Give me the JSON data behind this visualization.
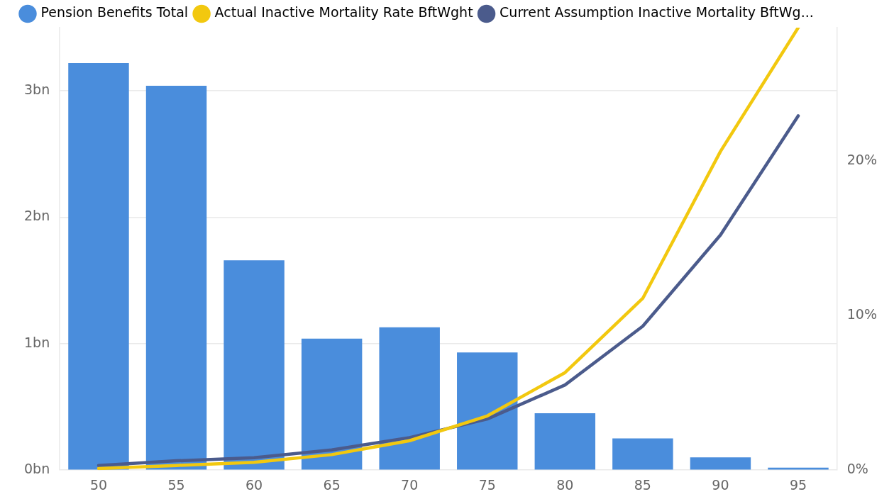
{
  "chart_data": {
    "type": "bar",
    "categories": [
      "50",
      "55",
      "60",
      "65",
      "70",
      "75",
      "80",
      "85",
      "90",
      "95"
    ],
    "series": [
      {
        "name": "Pension Benefits Total",
        "color": "#4a8ddc",
        "values": [
          3.22,
          3.04,
          1.66,
          1.04,
          1.13,
          0.93,
          0.45,
          0.25,
          0.1,
          0.02
        ]
      },
      {
        "name": "Actual Inactive Mortality Rate BftWght",
        "type": "line",
        "axis": "y2",
        "color": "#f2c80f",
        "values": [
          0.1,
          0.3,
          0.5,
          1.0,
          1.9,
          3.5,
          6.3,
          11.1,
          20.6,
          28.6
        ]
      },
      {
        "name": "Current Assumption Inactive Mortality BftWg...",
        "type": "line",
        "axis": "y2",
        "color": "#4b5b8c",
        "values": [
          0.3,
          0.6,
          0.8,
          1.3,
          2.1,
          3.3,
          5.5,
          9.3,
          15.2,
          22.9
        ]
      }
    ],
    "ylim": [
      0,
      3.5
    ],
    "yticks": [
      {
        "value": 0,
        "label": "0bn"
      },
      {
        "value": 1,
        "label": "1bn"
      },
      {
        "value": 2,
        "label": "2bn"
      },
      {
        "value": 3,
        "label": "3bn"
      }
    ],
    "y2lim": [
      0,
      28.6
    ],
    "y2ticks": [
      {
        "value": 0,
        "label": "0%"
      },
      {
        "value": 10,
        "label": "10%"
      },
      {
        "value": 20,
        "label": "20%"
      }
    ],
    "grid": "y",
    "legend": "top left",
    "marker": "none"
  }
}
